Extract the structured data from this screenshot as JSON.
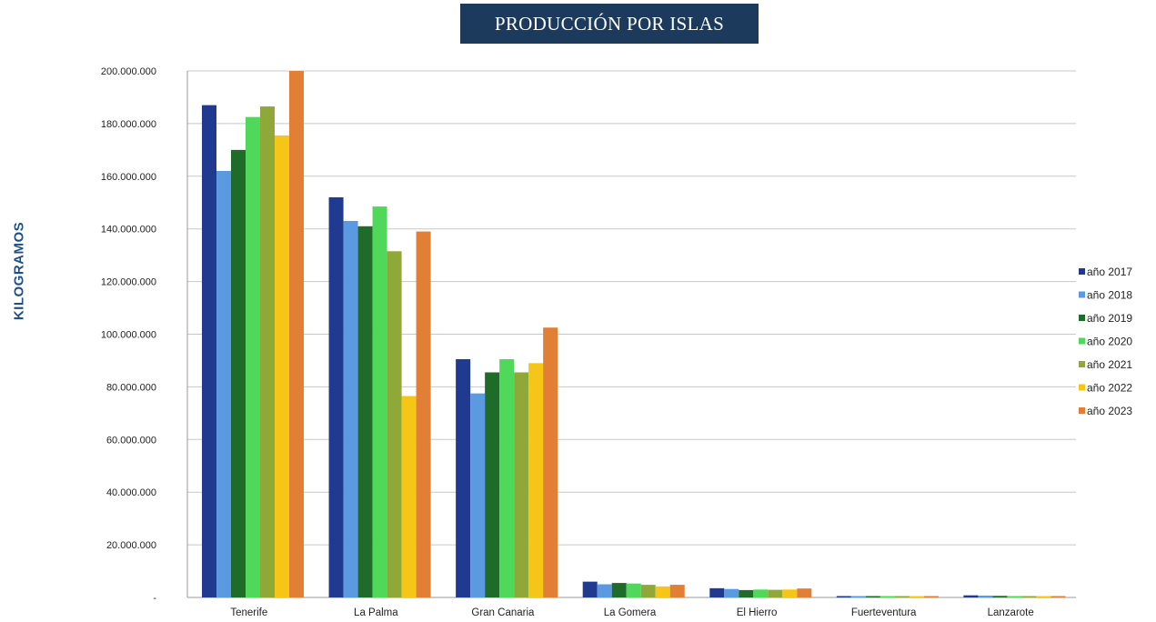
{
  "chart_data": {
    "type": "bar",
    "title": "PRODUCCIÓN POR ISLAS",
    "ylabel": "KILOGRAMOS",
    "xlabel": "",
    "ylim": [
      0,
      200000000
    ],
    "yticks": [
      0,
      20000000,
      40000000,
      60000000,
      80000000,
      100000000,
      120000000,
      140000000,
      160000000,
      180000000,
      200000000
    ],
    "ytick_labels": [
      "-",
      "20.000.000",
      "40.000.000",
      "60.000.000",
      "80.000.000",
      "100.000.000",
      "120.000.000",
      "140.000.000",
      "160.000.000",
      "180.000.000",
      "200.000.000"
    ],
    "grid": true,
    "legend_position": "right",
    "categories": [
      "Tenerife",
      "La Palma",
      "Gran Canaria",
      "La Gomera",
      "El Hierro",
      "Fuerteventura",
      "Lanzarote"
    ],
    "series": [
      {
        "name": "año 2017",
        "color": "#1f3a8f",
        "values": [
          187000000,
          152000000,
          90500000,
          6000000,
          3500000,
          500000,
          800000
        ]
      },
      {
        "name": "año 2018",
        "color": "#5b9ae0",
        "values": [
          162000000,
          143000000,
          77500000,
          5000000,
          3200000,
          500000,
          700000
        ]
      },
      {
        "name": "año 2019",
        "color": "#1f6b2a",
        "values": [
          170000000,
          141000000,
          85500000,
          5500000,
          2800000,
          400000,
          600000
        ]
      },
      {
        "name": "año 2020",
        "color": "#4fd85a",
        "values": [
          182500000,
          148500000,
          90500000,
          5300000,
          3000000,
          400000,
          500000
        ]
      },
      {
        "name": "año 2021",
        "color": "#8fa838",
        "values": [
          186500000,
          131500000,
          85500000,
          4800000,
          2900000,
          400000,
          500000
        ]
      },
      {
        "name": "año 2022",
        "color": "#f5c518",
        "values": [
          175500000,
          76500000,
          89000000,
          4200000,
          3000000,
          400000,
          500000
        ]
      },
      {
        "name": "año 2023",
        "color": "#e07f35",
        "values": [
          200000000,
          139000000,
          102500000,
          4800000,
          3400000,
          400000,
          500000
        ]
      }
    ]
  }
}
